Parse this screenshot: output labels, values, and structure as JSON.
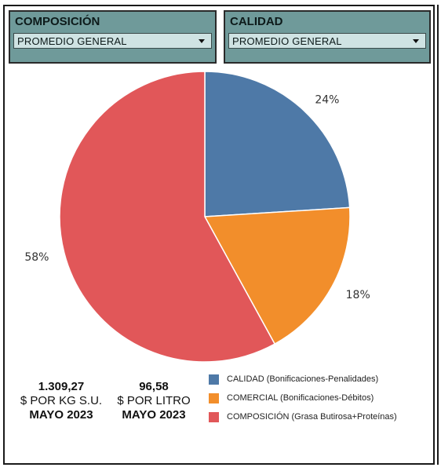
{
  "filters": {
    "composicion": {
      "title": "COMPOSICIÓN",
      "selected": "PROMEDIO GENERAL"
    },
    "calidad": {
      "title": "CALIDAD",
      "selected": "PROMEDIO GENERAL"
    }
  },
  "kpis": [
    {
      "value": "1.309,27",
      "unit": "$ POR KG S.U.",
      "period": "MAYO 2023"
    },
    {
      "value": "96,58",
      "unit": "$ POR LITRO",
      "period": "MAYO 2023"
    }
  ],
  "chart_data": {
    "type": "pie",
    "title": "",
    "slices": [
      {
        "label": "CALIDAD (Bonificaciones-Penalidades)",
        "value": 24,
        "display": "24%",
        "color": "#4e79a7"
      },
      {
        "label": "COMERCIAL (Bonificaciones-Débitos)",
        "value": 18,
        "display": "18%",
        "color": "#f28e2b"
      },
      {
        "label": "COMPOSICIÓN (Grasa Butirosa+Proteínas)",
        "value": 58,
        "display": "58%",
        "color": "#e15759"
      }
    ],
    "legend_position": "bottom-right"
  }
}
